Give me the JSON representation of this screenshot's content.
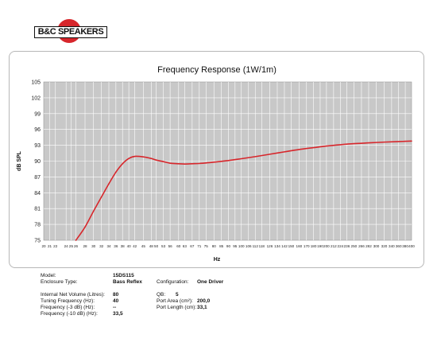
{
  "logo": {
    "text": "B&C SPEAKERS"
  },
  "colors": {
    "curve": "#d7262b",
    "plot_bg": "#c8c8c8",
    "grid": "#ffffff",
    "logo_red": "#d7262b"
  },
  "chart_data": {
    "type": "line",
    "title": "Frequency Response (1W/1m)",
    "xlabel": "Hz",
    "ylabel": "dB SPL",
    "x_scale": "log",
    "xlim": [
      20,
      400
    ],
    "ylim": [
      75,
      105
    ],
    "grid": true,
    "yticks": [
      75,
      78,
      81,
      84,
      87,
      90,
      93,
      96,
      99,
      102,
      105
    ],
    "xticks": [
      20,
      21,
      22,
      24,
      25,
      26,
      28,
      30,
      32,
      34,
      36,
      38,
      40,
      42,
      45,
      48,
      50,
      53,
      56,
      60,
      63,
      67,
      71,
      75,
      80,
      85,
      90,
      95,
      100,
      106,
      112,
      118,
      126,
      134,
      142,
      150,
      160,
      170,
      180,
      190,
      200,
      212,
      224,
      236,
      250,
      266,
      282,
      300,
      320,
      340,
      360,
      380,
      400
    ],
    "series": [
      {
        "x": [
          26,
          28,
          30,
          32,
          34,
          36,
          38,
          40,
          42,
          45,
          48,
          50,
          53,
          56,
          60,
          63,
          67,
          71,
          75,
          80,
          90,
          100,
          112,
          126,
          142,
          160,
          180,
          200,
          224,
          250,
          282,
          320,
          360,
          400
        ],
        "y": [
          75.0,
          77.5,
          80.5,
          83.2,
          85.7,
          87.9,
          89.5,
          90.5,
          90.9,
          90.8,
          90.5,
          90.2,
          89.9,
          89.6,
          89.5,
          89.45,
          89.5,
          89.55,
          89.65,
          89.8,
          90.1,
          90.45,
          90.85,
          91.3,
          91.75,
          92.2,
          92.55,
          92.85,
          93.1,
          93.3,
          93.45,
          93.6,
          93.7,
          93.8
        ]
      }
    ]
  },
  "specs": {
    "model_label": "Model:",
    "model_value": "15DS115",
    "enclosure_label": "Enclosure Type:",
    "enclosure_value": "Bass Reflex",
    "configuration_label": "Configuration:",
    "configuration_value": "One Driver",
    "volume_label": "Internal Net Volume (Litres):",
    "volume_value": "80",
    "qb_label": "QB:",
    "qb_value": "5",
    "tuning_label": "Tuning Frequency (Hz):",
    "tuning_value": "40",
    "port_area_label": "Port Area (cm²):",
    "port_area_value": "200,0",
    "f3_label": "Frequency (-3 dB) (Hz):",
    "f3_value": "--",
    "port_length_label": "Port Length (cm):",
    "port_length_value": "33,1",
    "f10_label": "Frequency (-10 dB) (Hz):",
    "f10_value": "33,5"
  }
}
